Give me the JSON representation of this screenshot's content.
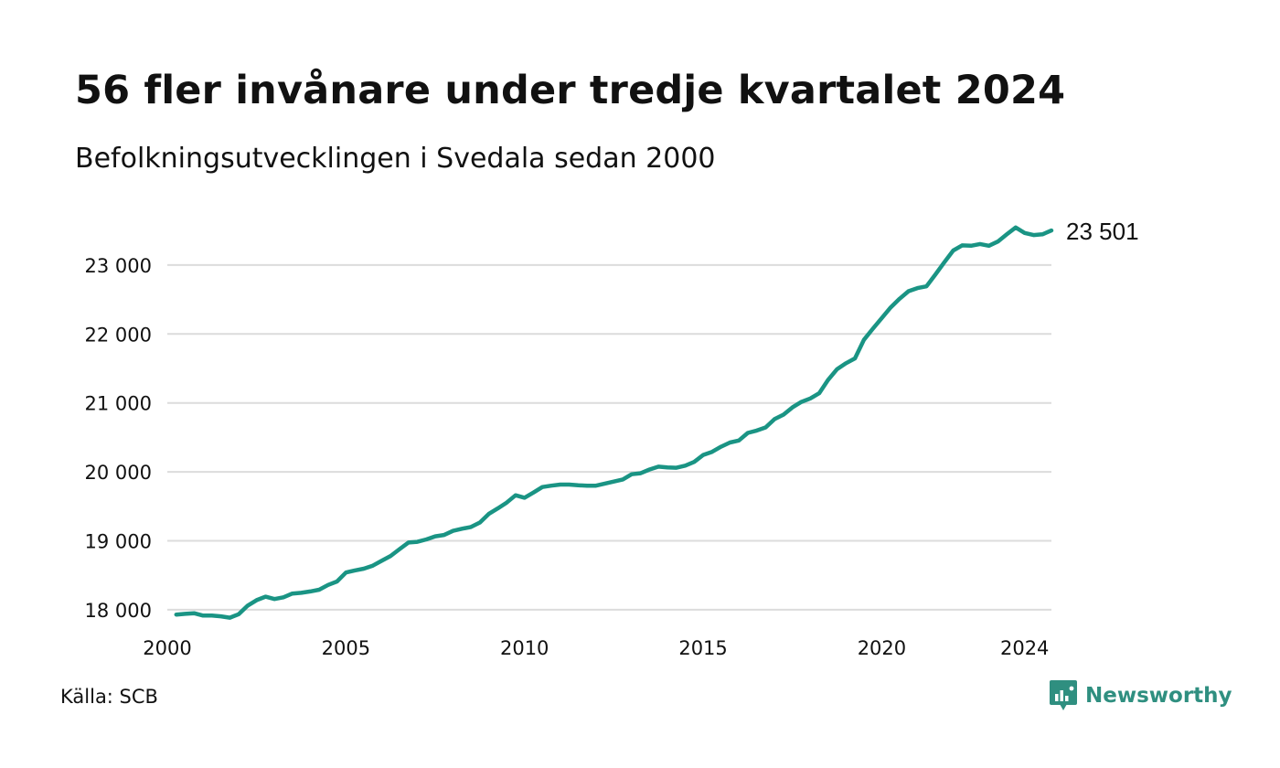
{
  "header": {
    "title": "56 fler invånare under tredje kvartalet 2024",
    "subtitle": "Befolkningsutvecklingen i Svedala sedan 2000"
  },
  "footer": {
    "source": "Källa: SCB",
    "brand": "Newsworthy",
    "brand_icon": "newsworthy-logo-icon"
  },
  "colors": {
    "line": "#1a9484",
    "grid": "#dcdcdc",
    "brand": "#2f8f80"
  },
  "chart_data": {
    "type": "line",
    "title": "56 fler invånare under tredje kvartalet 2024",
    "subtitle": "Befolkningsutvecklingen i Svedala sedan 2000",
    "xlabel": "",
    "ylabel": "",
    "x_ticks": [
      "2000",
      "2005",
      "2010",
      "2015",
      "2020",
      "2024"
    ],
    "y_ticks": [
      "18 000",
      "19 000",
      "20 000",
      "21 000",
      "22 000",
      "23 000"
    ],
    "xlim": [
      2000.0,
      2024.75
    ],
    "ylim": [
      17800,
      23900
    ],
    "grid": true,
    "end_label": "23 501",
    "series": [
      {
        "x": [
          2000.25,
          2000.5,
          2000.75,
          2001.0,
          2001.25,
          2001.5,
          2001.75,
          2002.0,
          2002.25,
          2002.5,
          2002.75,
          2003.0,
          2003.25,
          2003.5,
          2003.75,
          2004.0,
          2004.25,
          2004.5,
          2004.75,
          2005.0,
          2005.25,
          2005.5,
          2005.75,
          2006.0,
          2006.25,
          2006.5,
          2006.75,
          2007.0,
          2007.25,
          2007.5,
          2007.75,
          2008.0,
          2008.25,
          2008.5,
          2008.75,
          2009.0,
          2009.25,
          2009.5,
          2009.75,
          2010.0,
          2010.25,
          2010.5,
          2010.75,
          2011.0,
          2011.25,
          2011.5,
          2011.75,
          2012.0,
          2012.25,
          2012.5,
          2012.75,
          2013.0,
          2013.25,
          2013.5,
          2013.75,
          2014.0,
          2014.25,
          2014.5,
          2014.75,
          2015.0,
          2015.25,
          2015.5,
          2015.75,
          2016.0,
          2016.25,
          2016.5,
          2016.75,
          2017.0,
          2017.25,
          2017.5,
          2017.75,
          2018.0,
          2018.25,
          2018.5,
          2018.75,
          2019.0,
          2019.25,
          2019.5,
          2019.75,
          2020.0,
          2020.25,
          2020.5,
          2020.75,
          2021.0,
          2021.25,
          2021.5,
          2021.75,
          2022.0,
          2022.25,
          2022.5,
          2022.75,
          2023.0,
          2023.25,
          2023.5,
          2023.75,
          2024.0,
          2024.25,
          2024.5,
          2024.75
        ],
        "values": [
          17930,
          17940,
          17950,
          17915,
          17915,
          17905,
          17885,
          17935,
          18060,
          18140,
          18190,
          18155,
          18180,
          18235,
          18245,
          18265,
          18290,
          18360,
          18410,
          18540,
          18570,
          18595,
          18640,
          18710,
          18780,
          18880,
          18975,
          18985,
          19020,
          19065,
          19085,
          19145,
          19175,
          19200,
          19265,
          19390,
          19470,
          19555,
          19660,
          19625,
          19700,
          19780,
          19800,
          19815,
          19815,
          19805,
          19800,
          19800,
          19830,
          19860,
          19890,
          19965,
          19980,
          20035,
          20075,
          20065,
          20060,
          20090,
          20145,
          20245,
          20290,
          20365,
          20425,
          20455,
          20565,
          20600,
          20645,
          20765,
          20830,
          20935,
          21015,
          21065,
          21140,
          21335,
          21490,
          21575,
          21645,
          21915,
          22075,
          22230,
          22385,
          22510,
          22620,
          22665,
          22690,
          22860,
          23040,
          23210,
          23285,
          23280,
          23305,
          23280,
          23340,
          23445,
          23545,
          23465,
          23435,
          23445,
          23501
        ]
      }
    ]
  }
}
